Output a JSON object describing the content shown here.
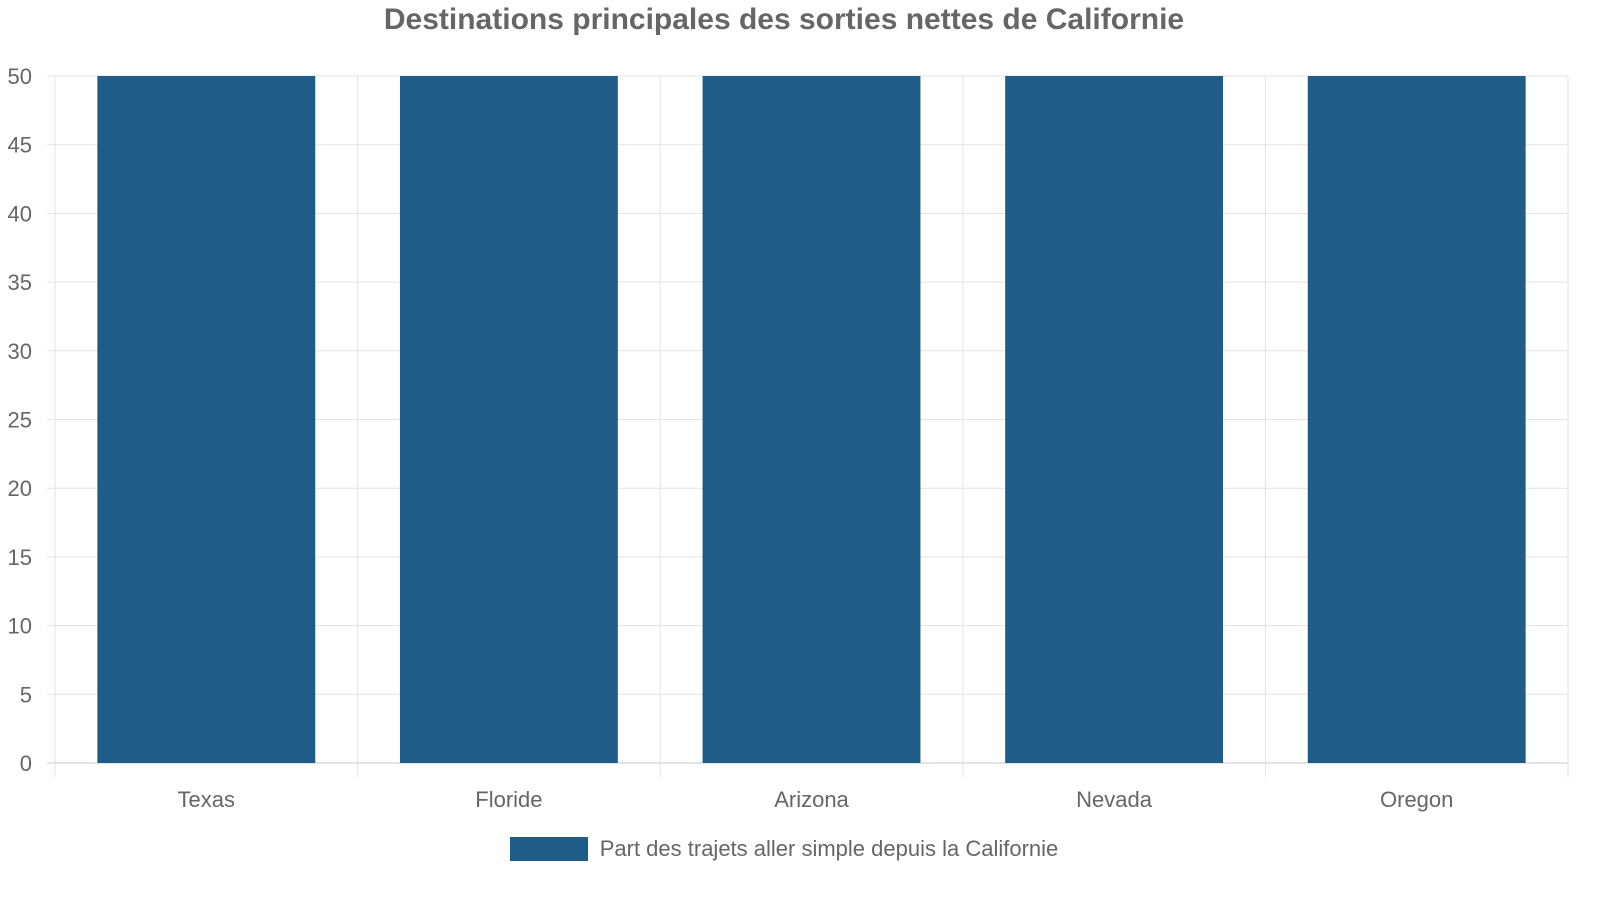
{
  "chart_data": {
    "type": "bar",
    "title": "Destinations principales des sorties nettes de Californie",
    "categories": [
      "Texas",
      "Floride",
      "Arizona",
      "Nevada",
      "Oregon"
    ],
    "series": [
      {
        "name": "Part des trajets aller simple depuis la Californie",
        "values": [
          50,
          50,
          50,
          50,
          50
        ],
        "color": "#1f5c87"
      }
    ],
    "xlabel": "",
    "ylabel": "",
    "ylim": [
      0,
      50
    ],
    "yticks": [
      0,
      5,
      10,
      15,
      20,
      25,
      30,
      35,
      40,
      45,
      50
    ],
    "grid": true,
    "legend_position": "bottom"
  }
}
